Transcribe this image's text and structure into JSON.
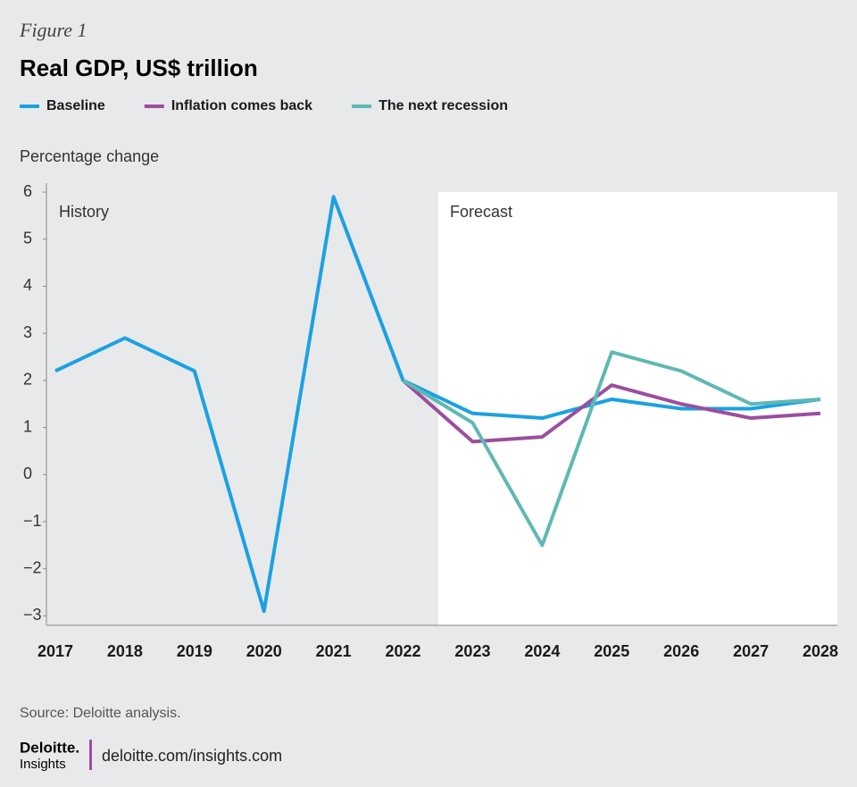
{
  "chart_data": {
    "type": "line",
    "figure_label": "Figure 1",
    "title": "Real GDP, US$ trillion",
    "y_axis_label": "Percentage change",
    "annotations": [
      "History",
      "Forecast"
    ],
    "categories": [
      "2017",
      "2018",
      "2019",
      "2020",
      "2021",
      "2022",
      "2023",
      "2024",
      "2025",
      "2026",
      "2027",
      "2028"
    ],
    "series": [
      {
        "name": "Baseline",
        "color": "#1ba1e2",
        "values": [
          2.2,
          2.9,
          2.2,
          -2.9,
          5.9,
          2.0,
          1.3,
          1.2,
          1.6,
          1.4,
          1.4,
          1.6
        ]
      },
      {
        "name": "Inflation comes back",
        "color": "#9c4e9e",
        "values": [
          null,
          null,
          null,
          null,
          null,
          2.0,
          0.7,
          0.8,
          1.9,
          1.5,
          1.2,
          1.3
        ]
      },
      {
        "name": "The next recession",
        "color": "#5fb8b5",
        "values": [
          null,
          null,
          null,
          null,
          null,
          2.0,
          1.1,
          -1.5,
          2.6,
          2.2,
          1.5,
          1.6
        ]
      }
    ],
    "ylim": [
      -3.2,
      6
    ],
    "yticks": [
      {
        "value": -3,
        "label": "−3"
      },
      {
        "value": -2,
        "label": "−2"
      },
      {
        "value": -1,
        "label": "−1"
      },
      0,
      1,
      2,
      3,
      4,
      5,
      6
    ],
    "source": "Source: Deloitte analysis.",
    "brand": "Deloitte.",
    "brand_sub": "Insights",
    "url": "deloitte.com/insights.com"
  }
}
